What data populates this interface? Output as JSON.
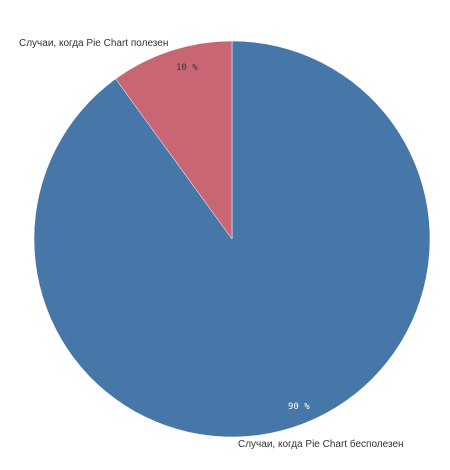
{
  "chart_data": {
    "type": "pie",
    "slices": [
      {
        "label": "Случаи, когда Pie Chart бесполезен",
        "value": 90,
        "display": "90 %",
        "color": "#4776a8"
      },
      {
        "label": "Случаи, когда Pie Chart полезен",
        "value": 10,
        "display": "10 %",
        "color": "#c96673"
      }
    ],
    "start": "12 o'clock",
    "direction": "clockwise",
    "legend": "none"
  }
}
